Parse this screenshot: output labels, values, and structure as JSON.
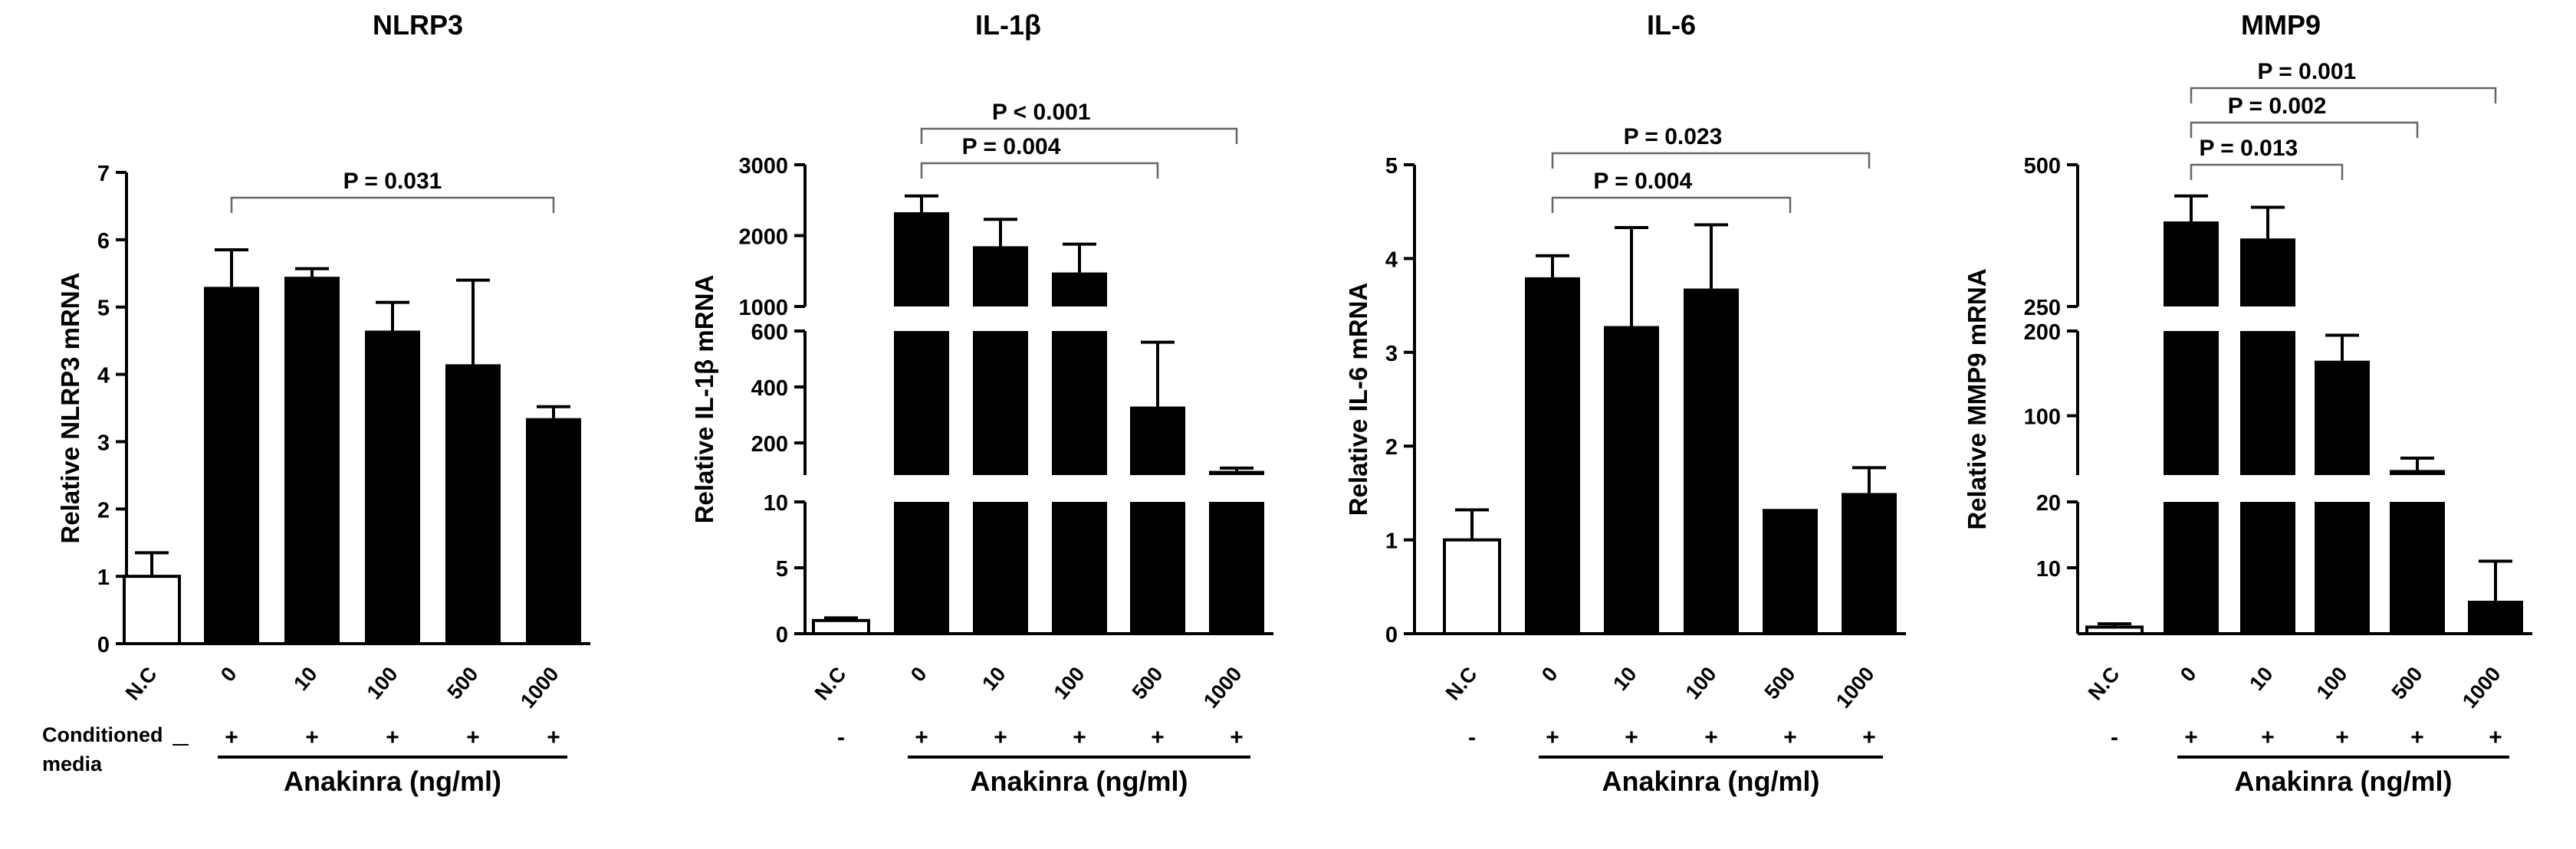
{
  "figure": {
    "condition_label_line1": "Conditioned",
    "condition_label_line2": "media",
    "treatment_label": "Anakinra (ng/ml)"
  },
  "chart_data": [
    {
      "type": "bar",
      "title": "NLRP3",
      "ylabel": "Relative NLRP3 mRNA",
      "xlabel": "Anakinra (ng/ml)",
      "categories": [
        "N.C",
        "0",
        "10",
        "100",
        "500",
        "1000"
      ],
      "values": [
        1.0,
        5.3,
        5.45,
        4.65,
        4.15,
        3.35
      ],
      "errors": [
        0.35,
        0.55,
        0.12,
        0.42,
        1.25,
        0.17
      ],
      "fills": [
        "white",
        "black",
        "black",
        "black",
        "black",
        "black"
      ],
      "conditioned_media": [
        "",
        "+",
        "+",
        "+",
        "+",
        "+"
      ],
      "show_condition_label": true,
      "axis": {
        "type": "linear",
        "ylim": [
          0,
          7
        ],
        "ticks": [
          0,
          1,
          2,
          3,
          4,
          5,
          6,
          7
        ]
      },
      "comparisons": [
        {
          "label": "P = 0.031",
          "from": "0",
          "to": "1000"
        }
      ]
    },
    {
      "type": "bar",
      "title": "IL-1β",
      "ylabel": "Relative IL-1β mRNA",
      "xlabel": "Anakinra (ng/ml)",
      "categories": [
        "N.C",
        "0",
        "10",
        "100",
        "500",
        "1000"
      ],
      "values": [
        1.0,
        2330,
        1850,
        1480,
        330,
        100
      ],
      "errors": [
        0.2,
        230,
        380,
        400,
        230,
        10
      ],
      "fills": [
        "white",
        "black",
        "black",
        "black",
        "black",
        "black"
      ],
      "conditioned_media": [
        "-",
        "+",
        "+",
        "+",
        "+",
        "+"
      ],
      "show_condition_label": false,
      "axis": {
        "type": "broken",
        "segments": [
          {
            "range": [
              0,
              10
            ],
            "ticks": [
              0,
              5,
              10
            ]
          },
          {
            "range": [
              85,
              600
            ],
            "ticks": [
              200,
              400,
              600
            ]
          },
          {
            "range": [
              1000,
              3000
            ],
            "ticks": [
              1000,
              2000,
              3000
            ]
          }
        ]
      },
      "comparisons": [
        {
          "label": "P = 0.004",
          "from": "0",
          "to": "500"
        },
        {
          "label": "P < 0.001",
          "from": "0",
          "to": "1000"
        }
      ]
    },
    {
      "type": "bar",
      "title": "IL-6",
      "ylabel": "Relative IL-6 mRNA",
      "xlabel": "Anakinra (ng/ml)",
      "categories": [
        "N.C",
        "0",
        "10",
        "100",
        "500",
        "1000"
      ],
      "values": [
        1.0,
        3.8,
        3.28,
        3.68,
        1.33,
        1.5
      ],
      "errors": [
        0.32,
        0.23,
        1.05,
        0.68,
        0.0,
        0.27
      ],
      "fills": [
        "white",
        "black",
        "black",
        "black",
        "black",
        "black"
      ],
      "conditioned_media": [
        "-",
        "+",
        "+",
        "+",
        "+",
        "+"
      ],
      "show_condition_label": false,
      "axis": {
        "type": "linear",
        "ylim": [
          0,
          5
        ],
        "ticks": [
          0,
          1,
          2,
          3,
          4,
          5
        ]
      },
      "comparisons": [
        {
          "label": "P = 0.004",
          "from": "0",
          "to": "500"
        },
        {
          "label": "P = 0.023",
          "from": "0",
          "to": "1000"
        }
      ]
    },
    {
      "type": "bar",
      "title": "MMP9",
      "ylabel": "Relative MMP9 mRNA",
      "xlabel": "Anakinra (ng/ml)",
      "categories": [
        "N.C",
        "0",
        "10",
        "100",
        "500",
        "1000"
      ],
      "values": [
        1.0,
        400,
        370,
        165,
        36,
        5
      ],
      "errors": [
        0.5,
        45,
        55,
        30,
        14,
        6
      ],
      "fills": [
        "white",
        "black",
        "black",
        "black",
        "black",
        "black"
      ],
      "conditioned_media": [
        "-",
        "+",
        "+",
        "+",
        "+",
        "+"
      ],
      "show_condition_label": false,
      "axis": {
        "type": "broken",
        "segments": [
          {
            "range": [
              0,
              20
            ],
            "ticks": [
              10,
              20
            ]
          },
          {
            "range": [
              30,
              200
            ],
            "ticks": [
              100,
              200
            ]
          },
          {
            "range": [
              250,
              500
            ],
            "ticks": [
              250,
              500
            ]
          }
        ]
      },
      "comparisons": [
        {
          "label": "P = 0.013",
          "from": "0",
          "to": "100"
        },
        {
          "label": "P = 0.002",
          "from": "0",
          "to": "500"
        },
        {
          "label": "P = 0.001",
          "from": "0",
          "to": "1000"
        }
      ]
    }
  ]
}
